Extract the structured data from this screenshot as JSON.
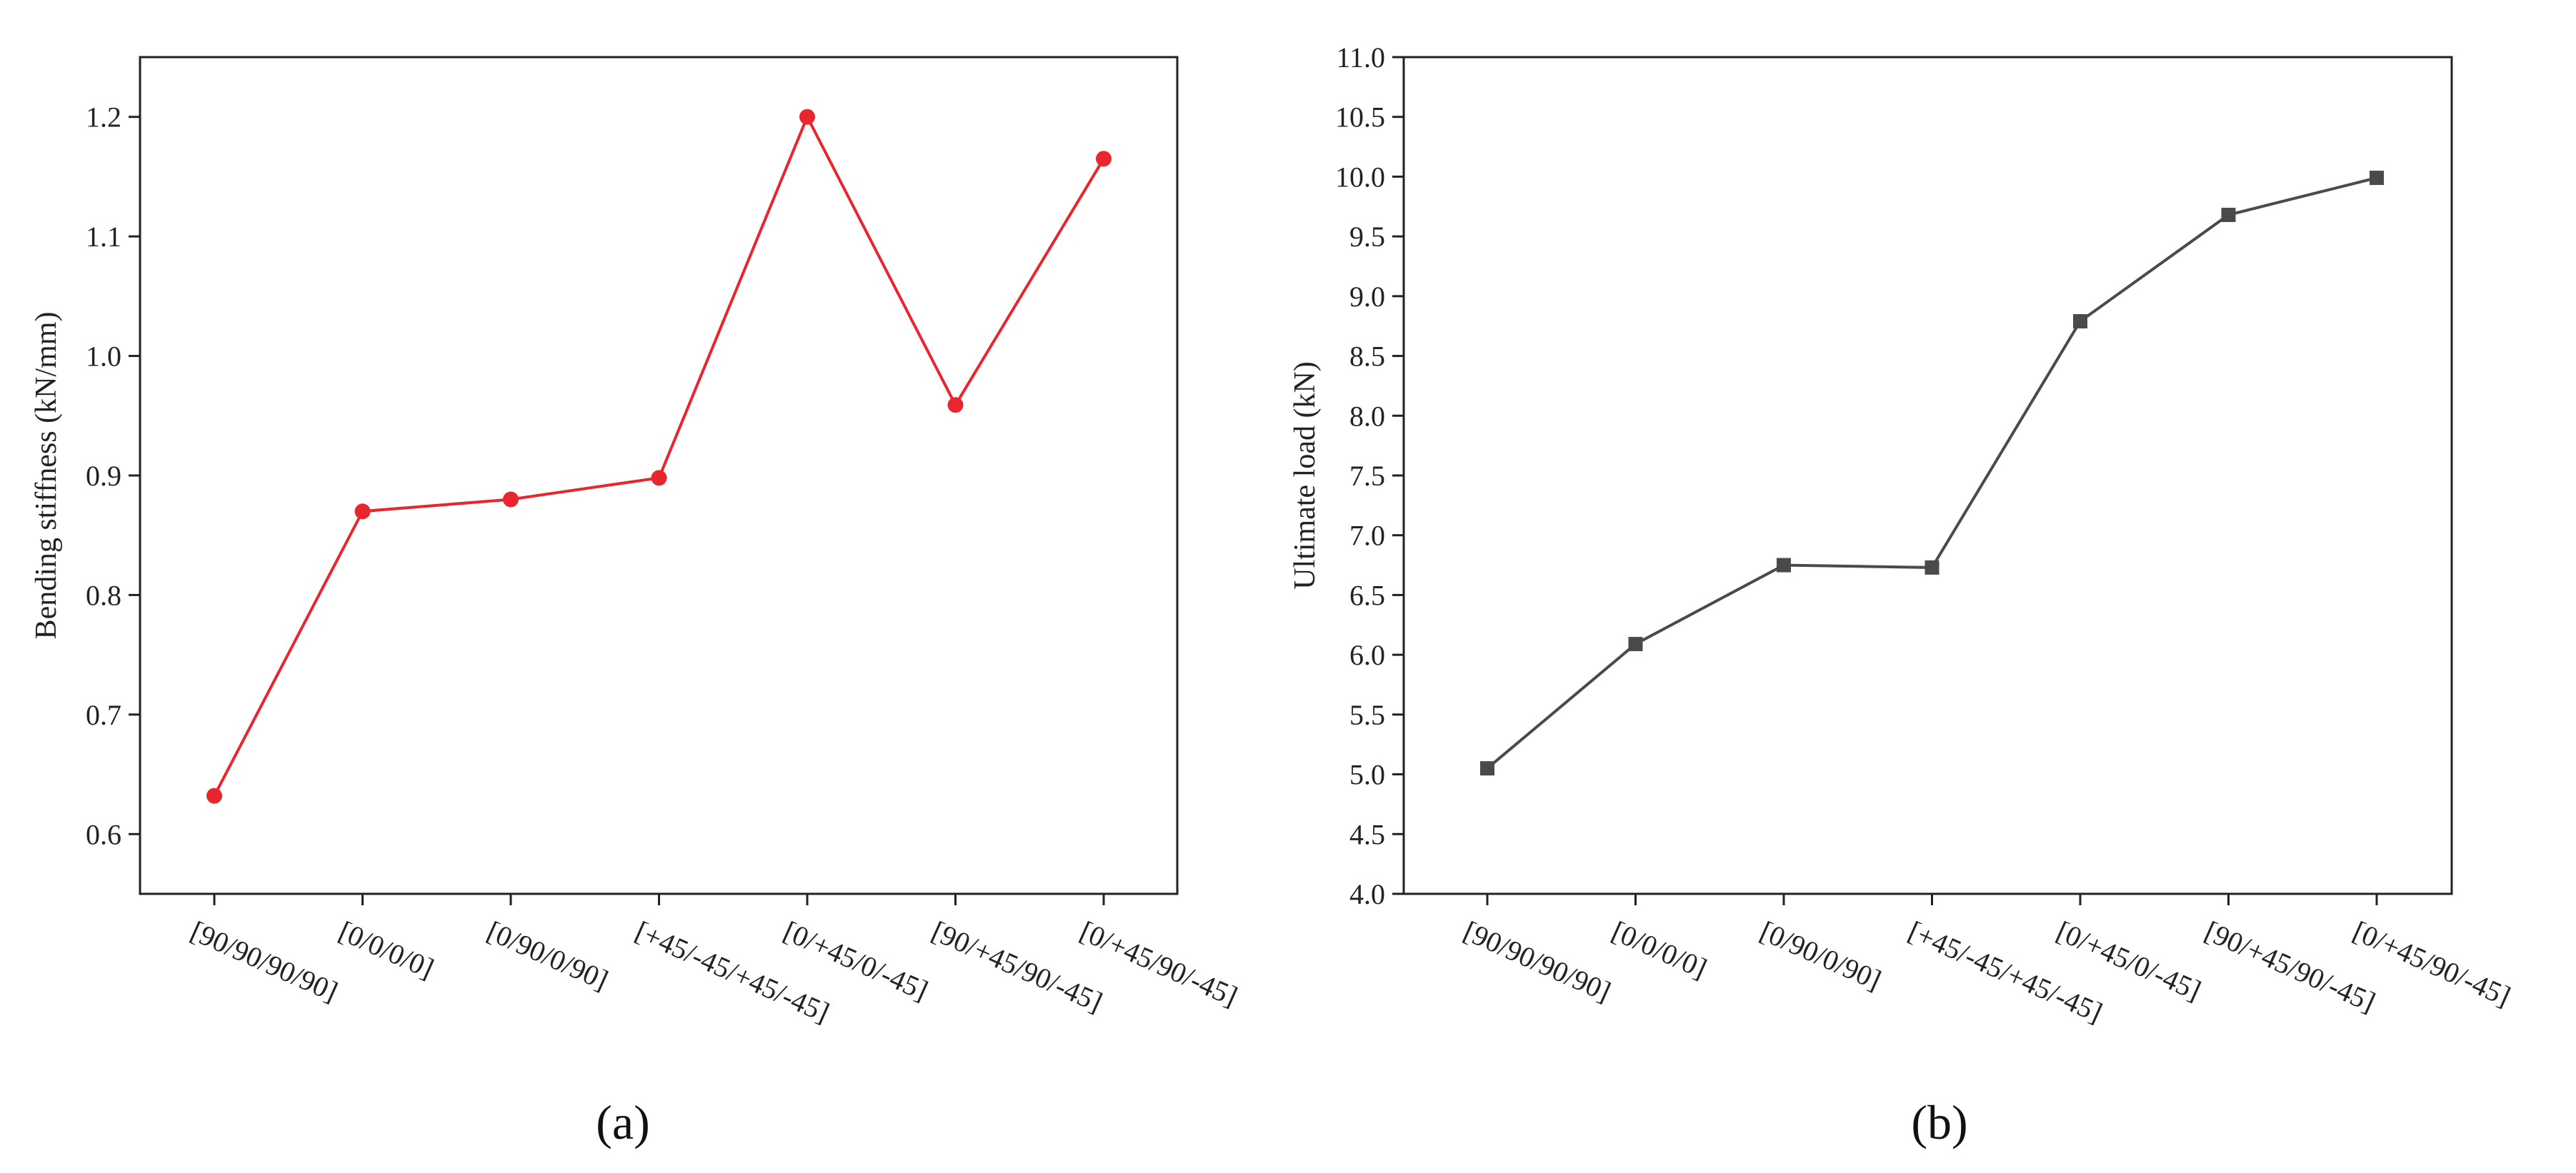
{
  "chart_data": [
    {
      "type": "line",
      "panel_label": "(a)",
      "categories": [
        "[90/90/90/90]",
        "[0/0/0/0]",
        "[0/90/0/90]",
        "[+45/-45/+45/-45]",
        "[0/+45/0/-45]",
        "[90/+45/90/-45]",
        "[0/+45/90/-45]"
      ],
      "series": [
        {
          "values": [
            0.632,
            0.87,
            0.88,
            0.898,
            1.2,
            0.959,
            1.165
          ],
          "color": "#e8262d",
          "marker": "circle"
        }
      ],
      "xlabel": "",
      "ylabel": "Bending stiffness (kN/mm)",
      "ylim": [
        0.55,
        1.25
      ],
      "yticks": [
        "0.6",
        "0.7",
        "0.8",
        "0.9",
        "1.0",
        "1.1",
        "1.2"
      ],
      "grid": false
    },
    {
      "type": "line",
      "panel_label": "(b)",
      "categories": [
        "[90/90/90/90]",
        "[0/0/0/0]",
        "[0/90/0/90]",
        "[+45/-45/+45/-45]",
        "[0/+45/0/-45]",
        "[90/+45/90/-45]",
        "[0/+45/90/-45]"
      ],
      "series": [
        {
          "values": [
            5.05,
            6.09,
            6.75,
            6.73,
            8.79,
            9.68,
            9.99
          ],
          "color": "#4a4a4a",
          "marker": "square"
        }
      ],
      "xlabel": "",
      "ylabel": "Ultimate load (kN)",
      "ylim": [
        4.0,
        11.0
      ],
      "yticks": [
        "4.0",
        "4.5",
        "5.0",
        "5.5",
        "6.0",
        "6.5",
        "7.0",
        "7.5",
        "8.0",
        "8.5",
        "9.0",
        "9.5",
        "10.0",
        "10.5",
        "11.0"
      ],
      "grid": false
    }
  ]
}
